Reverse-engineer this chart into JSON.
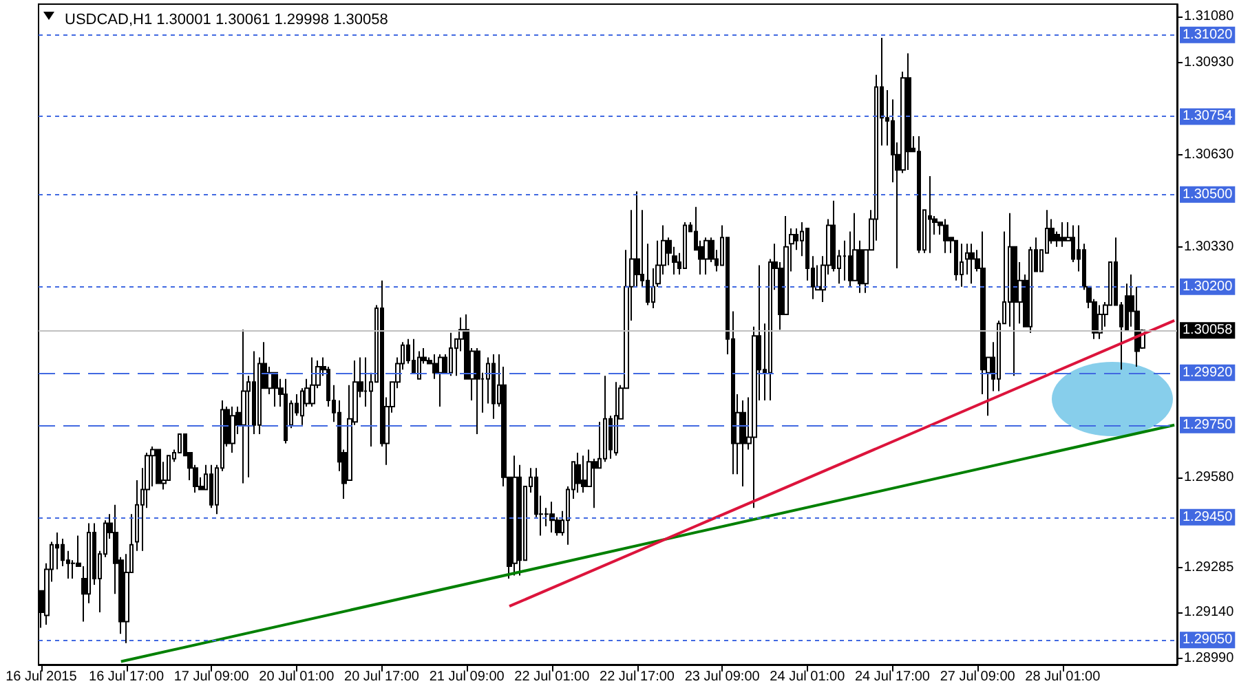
{
  "chart_data": {
    "type": "candlestick",
    "title": "USDCAD,H1 1.30001 1.30061 1.29998 1.30058",
    "color": "#000000",
    "categories": [
      "16 Jul 2015",
      null,
      null,
      null,
      null,
      null,
      null,
      null,
      null,
      null,
      null,
      null,
      null,
      null,
      null,
      null,
      "16 Jul 17:00",
      null,
      null,
      null,
      null,
      null,
      null,
      null,
      null,
      null,
      null,
      null,
      null,
      null,
      null,
      null,
      "17 Jul 09:00",
      null,
      null,
      null,
      null,
      null,
      null,
      null,
      null,
      null,
      null,
      null,
      null,
      null,
      null,
      null,
      "20 Jul 01:00",
      null,
      null,
      null,
      null,
      null,
      null,
      null,
      null,
      null,
      null,
      null,
      null,
      null,
      null,
      null,
      "20 Jul 17:00",
      null,
      null,
      null,
      null,
      null,
      null,
      null,
      null,
      null,
      null,
      null,
      null,
      null,
      null,
      null,
      "21 Jul 09:00",
      null,
      null,
      null,
      null,
      null,
      null,
      null,
      null,
      null,
      null,
      null,
      null,
      null,
      null,
      null,
      "22 Jul 01:00",
      null,
      null,
      null,
      null,
      null,
      null,
      null,
      null,
      null,
      null,
      null,
      null,
      null,
      null,
      null,
      "22 Jul 17:00",
      null,
      null,
      null,
      null,
      null,
      null,
      null,
      null,
      null,
      null,
      null,
      null,
      null,
      null,
      null,
      "23 Jul 09:00",
      null,
      null,
      null,
      null,
      null,
      null,
      null,
      null,
      null,
      null,
      null,
      null,
      null,
      null,
      null,
      "24 Jul 01:00",
      null,
      null,
      null,
      null,
      null,
      null,
      null,
      null,
      null,
      null,
      null,
      null,
      null,
      null,
      null,
      "24 Jul 17:00",
      null,
      null,
      null,
      null,
      null,
      null,
      null,
      null,
      null,
      null,
      null,
      null,
      null,
      null,
      null,
      "27 Jul 09:00",
      null,
      null,
      null,
      null,
      null,
      null,
      null,
      null,
      null,
      null,
      null,
      null,
      null,
      null,
      null,
      "28 Jul 01:00",
      null,
      null,
      null,
      null,
      null,
      null,
      null,
      null,
      null,
      null,
      null,
      null,
      null,
      null,
      null,
      null,
      null,
      null,
      null,
      null,
      null
    ],
    "ohlc": [
      [
        1.2921,
        1.2921,
        1.2909,
        1.2914
      ],
      [
        1.2913,
        1.293,
        1.291,
        1.2928
      ],
      [
        1.2928,
        1.2937,
        1.2924,
        1.2936
      ],
      [
        1.2936,
        1.294,
        1.2928,
        1.2935
      ],
      [
        1.2936,
        1.2938,
        1.2929,
        1.2931
      ],
      [
        1.2931,
        1.2934,
        1.2925,
        1.293
      ],
      [
        1.293,
        1.2931,
        1.2925,
        1.293
      ],
      [
        1.293,
        1.2939,
        1.2929,
        1.2929
      ],
      [
        1.2925,
        1.2929,
        1.2911,
        1.292
      ],
      [
        1.292,
        1.2943,
        1.2917,
        1.294
      ],
      [
        1.294,
        1.2943,
        1.2923,
        1.2925
      ],
      [
        1.2925,
        1.2934,
        1.2914,
        1.2933
      ],
      [
        1.2933,
        1.2944,
        1.2932,
        1.2943
      ],
      [
        1.2943,
        1.2946,
        1.2938,
        1.294
      ],
      [
        1.294,
        1.2949,
        1.292,
        1.293
      ],
      [
        1.2931,
        1.2932,
        1.2907,
        1.2911
      ],
      [
        1.2911,
        1.2933,
        1.2904,
        1.2927
      ],
      [
        1.2927,
        1.2946,
        1.2927,
        1.2936
      ],
      [
        1.2937,
        1.2957,
        1.2934,
        1.2949
      ],
      [
        1.2949,
        1.2961,
        1.2934,
        1.2954
      ],
      [
        1.2954,
        1.2966,
        1.2948,
        1.2965
      ],
      [
        1.2965,
        1.2968,
        1.2955,
        1.2967
      ],
      [
        1.2967,
        1.2967,
        1.2956,
        1.2956
      ],
      [
        1.2956,
        1.2963,
        1.2954,
        1.2957
      ],
      [
        1.2957,
        1.2965,
        1.2957,
        1.2965
      ],
      [
        1.2964,
        1.2967,
        1.2963,
        1.2966
      ],
      [
        1.2966,
        1.2972,
        1.2966,
        1.2972
      ],
      [
        1.2972,
        1.2972,
        1.2965,
        1.2965
      ],
      [
        1.2966,
        1.2966,
        1.2957,
        1.2961
      ],
      [
        1.2961,
        1.2962,
        1.2953,
        1.2955
      ],
      [
        1.2955,
        1.2958,
        1.2954,
        1.2954
      ],
      [
        1.2954,
        1.2962,
        1.2954,
        1.2959
      ],
      [
        1.2959,
        1.2962,
        1.2948,
        1.2949
      ],
      [
        1.2949,
        1.2962,
        1.2946,
        1.2961
      ],
      [
        1.2961,
        1.2983,
        1.296,
        1.298
      ],
      [
        1.298,
        1.2981,
        1.2968,
        1.2969
      ],
      [
        1.2969,
        1.2981,
        1.2966,
        1.2978
      ],
      [
        1.2979,
        1.2981,
        1.2972,
        1.2975
      ],
      [
        1.2975,
        1.3006,
        1.2956,
        1.2986
      ],
      [
        1.2986,
        1.2991,
        1.2958,
        1.2989
      ],
      [
        1.2989,
        1.2999,
        1.2972,
        1.2975
      ],
      [
        1.2975,
        1.2997,
        1.2972,
        1.2995
      ],
      [
        1.2995,
        1.3002,
        1.2987,
        1.2987
      ],
      [
        1.2987,
        1.2994,
        1.2985,
        1.2992
      ],
      [
        1.2992,
        1.2992,
        1.2981,
        1.2987
      ],
      [
        1.2987,
        1.299,
        1.2981,
        1.2985
      ],
      [
        1.2985,
        1.299,
        1.2969,
        1.297
      ],
      [
        1.2975,
        1.2983,
        1.2974,
        1.2982
      ],
      [
        1.2982,
        1.2985,
        1.2978,
        1.2979
      ],
      [
        1.2978,
        1.2987,
        1.2975,
        1.2986
      ],
      [
        1.2982,
        1.299,
        1.2981,
        1.2987
      ],
      [
        1.2982,
        1.2997,
        1.2981,
        1.2988
      ],
      [
        1.2988,
        1.2996,
        1.2987,
        1.2994
      ],
      [
        1.2994,
        1.2997,
        1.2991,
        1.2993
      ],
      [
        1.2993,
        1.2994,
        1.2981,
        1.2983
      ],
      [
        1.2983,
        1.2988,
        1.2976,
        1.2979
      ],
      [
        1.2979,
        1.2983,
        1.296,
        1.2963
      ],
      [
        1.2966,
        1.2967,
        1.2951,
        1.2956
      ],
      [
        1.2957,
        1.2988,
        1.2957,
        1.2977
      ],
      [
        1.2976,
        1.2996,
        1.2975,
        1.2989
      ],
      [
        1.2989,
        1.2997,
        1.2984,
        1.2986
      ],
      [
        1.2986,
        1.2997,
        1.2981,
        1.2986
      ],
      [
        1.2986,
        1.2992,
        1.2968,
        1.2989
      ],
      [
        1.2989,
        1.3014,
        1.2989,
        1.3013
      ],
      [
        1.3013,
        1.3022,
        1.2968,
        1.2969
      ],
      [
        1.2969,
        1.2984,
        1.2962,
        1.2981
      ],
      [
        1.2981,
        1.2989,
        1.2979,
        1.2989
      ],
      [
        1.2989,
        1.2997,
        1.2987,
        1.2995
      ],
      [
        1.2995,
        1.3002,
        1.2993,
        1.3001
      ],
      [
        1.3001,
        1.3003,
        1.2995,
        1.2996
      ],
      [
        1.2996,
        1.3003,
        1.2992,
        1.2992
      ],
      [
        1.299,
        1.2999,
        1.299,
        1.2997
      ],
      [
        1.2997,
        1.3,
        1.2995,
        1.2996
      ],
      [
        1.2996,
        1.2997,
        1.2995,
        1.2995
      ],
      [
        1.2995,
        1.2998,
        1.299,
        1.2992
      ],
      [
        1.2992,
        1.2998,
        1.2981,
        1.2997
      ],
      [
        1.2997,
        1.2998,
        1.2992,
        1.2992
      ],
      [
        1.2992,
        1.3005,
        1.2991,
        1.3
      ],
      [
        1.3,
        1.3003,
        1.2991,
        1.3003
      ],
      [
        1.3003,
        1.301,
        1.2999,
        1.3006
      ],
      [
        1.3006,
        1.3011,
        1.299,
        1.299
      ],
      [
        1.299,
        1.3,
        1.2983,
        1.2999
      ],
      [
        1.2999,
        1.3,
        1.2972,
        1.299
      ],
      [
        1.299,
        1.2992,
        1.2979,
        1.299
      ],
      [
        1.299,
        1.2997,
        1.2982,
        1.2995
      ],
      [
        1.2995,
        1.2998,
        1.2977,
        1.2982
      ],
      [
        1.2982,
        1.2998,
        1.2981,
        1.2988
      ],
      [
        1.2988,
        1.2994,
        1.2955,
        1.2958
      ],
      [
        1.2958,
        1.2958,
        1.2925,
        1.2929
      ],
      [
        1.293,
        1.2965,
        1.2926,
        1.2958
      ],
      [
        1.2958,
        1.2962,
        1.2926,
        1.2931
      ],
      [
        1.2931,
        1.2955,
        1.2931,
        1.2955
      ],
      [
        1.2955,
        1.2961,
        1.2953,
        1.2958
      ],
      [
        1.2958,
        1.2961,
        1.2945,
        1.2946
      ],
      [
        1.2946,
        1.2952,
        1.2939,
        1.2946
      ],
      [
        1.2946,
        1.2948,
        1.2942,
        1.2946
      ],
      [
        1.2946,
        1.295,
        1.294,
        1.2944
      ],
      [
        1.2944,
        1.2945,
        1.2939,
        1.294
      ],
      [
        1.294,
        1.2947,
        1.2939,
        1.2944
      ],
      [
        1.2944,
        1.2955,
        1.2936,
        1.2954
      ],
      [
        1.2954,
        1.2963,
        1.2951,
        1.2963
      ],
      [
        1.2962,
        1.2966,
        1.2953,
        1.2956
      ],
      [
        1.2957,
        1.2965,
        1.2953,
        1.2955
      ],
      [
        1.2955,
        1.2967,
        1.2955,
        1.2963
      ],
      [
        1.2963,
        1.2964,
        1.2948,
        1.2961
      ],
      [
        1.2961,
        1.2976,
        1.2961,
        1.2964
      ],
      [
        1.2964,
        1.2991,
        1.2963,
        1.2977
      ],
      [
        1.2977,
        1.2978,
        1.2964,
        1.2967
      ],
      [
        1.2966,
        1.2989,
        1.2965,
        1.2978
      ],
      [
        1.2977,
        1.2988,
        1.2977,
        1.2987
      ],
      [
        1.2987,
        1.3032,
        1.2987,
        1.302
      ],
      [
        1.302,
        1.3045,
        1.3009,
        1.3029
      ],
      [
        1.3029,
        1.3051,
        1.302,
        1.3024
      ],
      [
        1.3024,
        1.3045,
        1.302,
        1.3022
      ],
      [
        1.3022,
        1.3034,
        1.3014,
        1.3015
      ],
      [
        1.3015,
        1.3026,
        1.3013,
        1.302
      ],
      [
        1.3021,
        1.3035,
        1.302,
        1.3027
      ],
      [
        1.3027,
        1.304,
        1.3024,
        1.3035
      ],
      [
        1.3035,
        1.3036,
        1.3027,
        1.3031
      ],
      [
        1.303,
        1.3033,
        1.3024,
        1.3028
      ],
      [
        1.3028,
        1.3031,
        1.3024,
        1.3026
      ],
      [
        1.3026,
        1.3041,
        1.3026,
        1.304
      ],
      [
        1.304,
        1.3041,
        1.3038,
        1.3038
      ],
      [
        1.3038,
        1.3046,
        1.3032,
        1.3032
      ],
      [
        1.3033,
        1.3035,
        1.3024,
        1.3029
      ],
      [
        1.3029,
        1.3036,
        1.3024,
        1.3035
      ],
      [
        1.3035,
        1.3036,
        1.3028,
        1.3029
      ],
      [
        1.3029,
        1.3032,
        1.3025,
        1.3027
      ],
      [
        1.3027,
        1.304,
        1.3027,
        1.3036
      ],
      [
        1.3036,
        1.3036,
        1.2998,
        1.3003
      ],
      [
        1.3003,
        1.3012,
        1.2959,
        1.2969
      ],
      [
        1.2969,
        1.2985,
        1.2959,
        1.2979
      ],
      [
        1.2979,
        1.2983,
        1.2955,
        1.2969
      ],
      [
        1.2969,
        1.2984,
        1.2967,
        1.2971
      ],
      [
        1.2971,
        1.3007,
        1.2948,
        1.3004
      ],
      [
        1.3004,
        1.3027,
        1.2983,
        1.2993
      ],
      [
        1.2993,
        1.3008,
        1.2983,
        1.2992
      ],
      [
        1.2992,
        1.3029,
        1.2983,
        1.3028
      ],
      [
        1.3028,
        1.3034,
        1.3019,
        1.3026
      ],
      [
        1.3026,
        1.3028,
        1.3006,
        1.3011
      ],
      [
        1.3011,
        1.3043,
        1.3011,
        1.3033
      ],
      [
        1.3034,
        1.3039,
        1.3025,
        1.3037
      ],
      [
        1.3037,
        1.3039,
        1.3032,
        1.3035
      ],
      [
        1.3035,
        1.3041,
        1.303,
        1.3038
      ],
      [
        1.3039,
        1.3039,
        1.3022,
        1.3026
      ],
      [
        1.3026,
        1.303,
        1.3016,
        1.302
      ],
      [
        1.3019,
        1.3027,
        1.3019,
        1.302
      ],
      [
        1.3019,
        1.303,
        1.3015,
        1.3027
      ],
      [
        1.3027,
        1.3042,
        1.3024,
        1.304
      ],
      [
        1.304,
        1.3048,
        1.3025,
        1.3026
      ],
      [
        1.3026,
        1.3032,
        1.3021,
        1.303
      ],
      [
        1.303,
        1.3035,
        1.3022,
        1.303
      ],
      [
        1.303,
        1.3038,
        1.302,
        1.3022
      ],
      [
        1.3022,
        1.3044,
        1.3022,
        1.3032
      ],
      [
        1.3032,
        1.3035,
        1.3018,
        1.3021
      ],
      [
        1.3021,
        1.3032,
        1.3018,
        1.3032
      ],
      [
        1.3032,
        1.3045,
        1.3032,
        1.3042
      ],
      [
        1.3042,
        1.3089,
        1.3035,
        1.3085
      ],
      [
        1.3085,
        1.3101,
        1.3066,
        1.3075
      ],
      [
        1.3075,
        1.3084,
        1.3066,
        1.3074
      ],
      [
        1.3074,
        1.3081,
        1.3054,
        1.3063
      ],
      [
        1.3063,
        1.3067,
        1.3026,
        1.3058
      ],
      [
        1.3058,
        1.309,
        1.3057,
        1.3088
      ],
      [
        1.3088,
        1.3096,
        1.3058,
        1.3064
      ],
      [
        1.3065,
        1.3069,
        1.3064,
        1.3064
      ],
      [
        1.3064,
        1.3069,
        1.3031,
        1.3032
      ],
      [
        1.3032,
        1.3045,
        1.3031,
        1.3045
      ],
      [
        1.3043,
        1.3056,
        1.3031,
        1.3042
      ],
      [
        1.3042,
        1.3043,
        1.3037,
        1.3041
      ],
      [
        1.3041,
        1.3041,
        1.3037,
        1.304
      ],
      [
        1.304,
        1.3042,
        1.3031,
        1.3035
      ],
      [
        1.3036,
        1.3036,
        1.3031,
        1.3035
      ],
      [
        1.3035,
        1.3035,
        1.3022,
        1.3024
      ],
      [
        1.3024,
        1.3034,
        1.302,
        1.3028
      ],
      [
        1.3029,
        1.3034,
        1.3024,
        1.3031
      ],
      [
        1.3031,
        1.3034,
        1.3021,
        1.3029
      ],
      [
        1.3029,
        1.3032,
        1.3025,
        1.3026
      ],
      [
        1.3026,
        1.3038,
        1.2985,
        1.2993
      ],
      [
        1.2992,
        1.2997,
        1.2978,
        1.2997
      ],
      [
        1.2997,
        1.3002,
        1.2986,
        1.299
      ],
      [
        1.299,
        1.3009,
        1.2986,
        1.3008
      ],
      [
        1.3008,
        1.3038,
        1.3008,
        1.3015
      ],
      [
        1.3015,
        1.3044,
        1.3007,
        1.3033
      ],
      [
        1.3033,
        1.3033,
        1.2991,
        1.3015
      ],
      [
        1.3015,
        1.3028,
        1.3008,
        1.3022
      ],
      [
        1.3022,
        1.3024,
        1.3007,
        1.3007
      ],
      [
        1.3007,
        1.3033,
        1.3005,
        1.3032
      ],
      [
        1.3032,
        1.3036,
        1.3025,
        1.3025
      ],
      [
        1.3025,
        1.3032,
        1.3025,
        1.3032
      ],
      [
        1.3031,
        1.3045,
        1.3031,
        1.3039
      ],
      [
        1.3039,
        1.3042,
        1.3034,
        1.3035
      ],
      [
        1.3037,
        1.3038,
        1.3033,
        1.3035
      ],
      [
        1.3036,
        1.3041,
        1.3033,
        1.3035
      ],
      [
        1.3035,
        1.3041,
        1.3035,
        1.3036
      ],
      [
        1.3036,
        1.304,
        1.3028,
        1.3029
      ],
      [
        1.3032,
        1.304,
        1.3025,
        1.3029
      ],
      [
        1.3032,
        1.3034,
        1.3019,
        1.302
      ],
      [
        1.302,
        1.302,
        1.3013,
        1.3015
      ],
      [
        1.3015,
        1.3016,
        1.3003,
        1.3005
      ],
      [
        1.3005,
        1.3014,
        1.3003,
        1.3011
      ],
      [
        1.3011,
        1.3015,
        1.3007,
        1.3014
      ],
      [
        1.3014,
        1.3028,
        1.3014,
        1.3028
      ],
      [
        1.3028,
        1.3036,
        1.3014,
        1.3014
      ],
      [
        1.3014,
        1.3015,
        1.2993,
        1.3007
      ],
      [
        1.3017,
        1.3021,
        1.3006,
        1.3006
      ],
      [
        1.3017,
        1.3024,
        1.3007,
        1.3012
      ],
      [
        1.3012,
        1.302,
        1.2994,
        1.2999
      ],
      [
        1.30001,
        1.30061,
        1.29998,
        1.30058
      ],
      null,
      null,
      null,
      null,
      null,
      null
    ],
    "series": [
      {
        "type": "line",
        "color": "#008000",
        "values": [
          null,
          null,
          null,
          null,
          null,
          null,
          null,
          null,
          null,
          null,
          null,
          null,
          null,
          null,
          null,
          1.2898,
          null,
          null,
          null,
          null,
          null,
          null,
          null,
          null,
          null,
          null,
          null,
          null,
          null,
          null,
          null,
          null,
          null,
          null,
          null,
          null,
          null,
          null,
          null,
          null,
          null,
          null,
          null,
          null,
          null,
          null,
          null,
          null,
          null,
          null,
          null,
          null,
          null,
          null,
          null,
          null,
          null,
          null,
          null,
          null,
          null,
          null,
          null,
          null,
          null,
          null,
          null,
          null,
          null,
          null,
          null,
          null,
          null,
          null,
          null,
          null,
          null,
          null,
          null,
          null,
          null,
          null,
          null,
          null,
          null,
          null,
          null,
          null,
          null,
          null,
          null,
          null,
          null,
          null,
          null,
          null,
          null,
          null,
          null,
          null,
          null,
          null,
          null,
          null,
          null,
          null,
          null,
          null,
          null,
          null,
          null,
          null,
          null,
          null,
          null,
          null,
          null,
          null,
          null,
          null,
          null,
          null,
          null,
          null,
          null,
          null,
          null,
          null,
          null,
          null,
          null,
          null,
          null,
          null,
          null,
          null,
          null,
          null,
          null,
          null,
          null,
          null,
          null,
          null,
          null,
          null,
          null,
          null,
          null,
          null,
          null,
          null,
          null,
          null,
          null,
          null,
          null,
          null,
          null,
          null,
          null,
          null,
          null,
          null,
          null,
          null,
          null,
          null,
          null,
          null,
          null,
          null,
          null,
          null,
          null,
          null,
          null,
          null,
          null,
          null,
          null,
          null,
          null,
          null,
          null,
          null,
          null,
          null,
          null,
          null,
          null,
          null,
          null,
          null,
          null,
          null,
          null,
          null,
          null,
          null,
          null,
          null,
          null,
          null,
          null,
          null,
          null,
          null,
          null,
          null,
          null,
          null,
          null,
          1.2975
        ]
      },
      {
        "type": "line",
        "color": "#dc143c",
        "values": [
          null,
          null,
          null,
          null,
          null,
          null,
          null,
          null,
          null,
          null,
          null,
          null,
          null,
          null,
          null,
          null,
          null,
          null,
          null,
          null,
          null,
          null,
          null,
          null,
          null,
          null,
          null,
          null,
          null,
          null,
          null,
          null,
          null,
          null,
          null,
          null,
          null,
          null,
          null,
          null,
          null,
          null,
          null,
          null,
          null,
          null,
          null,
          null,
          null,
          null,
          null,
          null,
          null,
          null,
          null,
          null,
          null,
          null,
          null,
          null,
          null,
          null,
          null,
          null,
          null,
          null,
          null,
          null,
          null,
          null,
          null,
          null,
          null,
          null,
          null,
          null,
          null,
          null,
          null,
          null,
          null,
          null,
          null,
          null,
          null,
          null,
          null,
          null,
          1.2916,
          null,
          null,
          null,
          null,
          null,
          null,
          null,
          null,
          null,
          null,
          null,
          null,
          null,
          null,
          null,
          null,
          null,
          null,
          null,
          null,
          null,
          null,
          null,
          null,
          null,
          null,
          null,
          null,
          null,
          null,
          null,
          null,
          null,
          null,
          null,
          null,
          null,
          null,
          null,
          null,
          null,
          null,
          null,
          null,
          null,
          null,
          null,
          null,
          null,
          null,
          null,
          null,
          null,
          null,
          null,
          null,
          null,
          null,
          null,
          null,
          null,
          null,
          null,
          null,
          null,
          null,
          null,
          null,
          null,
          null,
          null,
          null,
          null,
          null,
          null,
          null,
          null,
          null,
          null,
          null,
          null,
          null,
          null,
          null,
          null,
          null,
          null,
          null,
          null,
          null,
          null,
          null,
          null,
          null,
          null,
          null,
          null,
          null,
          null,
          null,
          null,
          null,
          null,
          null,
          null,
          null,
          null,
          null,
          null,
          null,
          null,
          null,
          null,
          null,
          null,
          null,
          null,
          null,
          null,
          null,
          null,
          null,
          null,
          null,
          1.3009
        ]
      }
    ],
    "ylim": [
      1.2897,
      1.3112
    ],
    "yticks": [
      {
        "value": 1.3108,
        "label": "1.31080"
      },
      {
        "value": 1.3093,
        "label": "1.30930"
      },
      {
        "value": 1.3063,
        "label": "1.30630"
      },
      {
        "value": 1.3033,
        "label": "1.30330"
      },
      {
        "value": 1.2958,
        "label": "1.29580"
      },
      {
        "value": 1.29285,
        "label": "1.29285"
      },
      {
        "value": 1.2914,
        "label": "1.29140"
      },
      {
        "value": 1.2899,
        "label": "1.28990"
      }
    ],
    "ref_lines": [
      {
        "axis": "y",
        "value": 1.3102,
        "label": "1.31020",
        "color": "#4169e1",
        "line_style": "dotted"
      },
      {
        "axis": "y",
        "value": 1.30754,
        "label": "1.30754",
        "color": "#4169e1",
        "line_style": "dotted"
      },
      {
        "axis": "y",
        "value": 1.305,
        "label": "1.30500",
        "color": "#4169e1",
        "line_style": "dotted"
      },
      {
        "axis": "y",
        "value": 1.302,
        "label": "1.30200",
        "color": "#4169e1",
        "line_style": "dotted"
      },
      {
        "axis": "y",
        "value": 1.30058,
        "label": "1.30058",
        "color": "#c0c0c0",
        "line_style": "solid"
      },
      {
        "axis": "y",
        "value": 1.2992,
        "label": "1.29920",
        "color": "#4169e1",
        "line_style": "dashed"
      },
      {
        "axis": "y",
        "value": 1.2975,
        "label": "1.29750",
        "color": "#4169e1",
        "line_style": "dashed"
      },
      {
        "axis": "y",
        "value": 1.2945,
        "label": "1.29450",
        "color": "#4169e1",
        "line_style": "dotted"
      },
      {
        "axis": "y",
        "value": 1.2905,
        "label": "1.29050",
        "color": "#4169e1",
        "line_style": "dotted"
      }
    ],
    "grid": false,
    "marker": "none"
  }
}
